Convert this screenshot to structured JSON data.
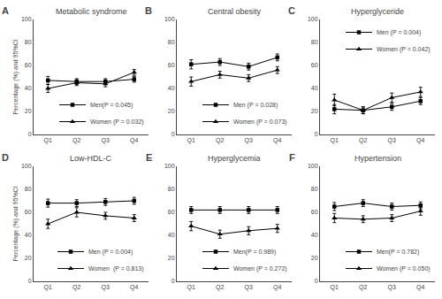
{
  "chart_data": [
    {
      "type": "line",
      "title": "Metabolic syndrome",
      "annotations": [
        "A"
      ],
      "ylabel": "Percentage (%) and 95%CI",
      "categories": [
        "Q1",
        "Q2",
        "Q3",
        "Q4"
      ],
      "series": [
        {
          "name": "Men(P = 0.045)",
          "color": "black",
          "marker": "square",
          "values": [
            47,
            46,
            46,
            48
          ],
          "errors": [
            3.5,
            2.5,
            2.5,
            2.5
          ]
        },
        {
          "name": "Women (P = 0.032)",
          "color": "black",
          "marker": "triangle-up",
          "values": [
            40,
            45,
            44,
            54
          ],
          "errors": [
            3.5,
            2.5,
            2.5,
            2.5
          ]
        }
      ],
      "ylim": [
        0,
        100
      ],
      "yticks": [
        0,
        20,
        40,
        60,
        80,
        100
      ],
      "grid": false,
      "legend": "lower right"
    },
    {
      "type": "line",
      "title": "Central obesity",
      "annotations": [
        "B"
      ],
      "categories": [
        "Q1",
        "Q2",
        "Q3",
        "Q4"
      ],
      "series": [
        {
          "name": "Men (P = 0.028)",
          "color": "black",
          "marker": "square",
          "values": [
            61,
            63,
            59,
            67
          ],
          "errors": [
            4,
            3,
            3,
            3
          ]
        },
        {
          "name": "Women (P = 0.073)",
          "color": "black",
          "marker": "triangle-up",
          "values": [
            46,
            52,
            49,
            56
          ],
          "errors": [
            4,
            3,
            3,
            3
          ]
        }
      ],
      "ylim": [
        0,
        100
      ],
      "yticks": [
        0,
        20,
        40,
        60,
        80,
        100
      ],
      "grid": false,
      "legend": "lower right"
    },
    {
      "type": "line",
      "title": "Hyperglyceride",
      "annotations": [
        "C"
      ],
      "categories": [
        "Q1",
        "Q2",
        "Q3",
        "Q4"
      ],
      "series": [
        {
          "name": "Men (P = 0.004)",
          "color": "black",
          "marker": "square",
          "values": [
            22,
            21,
            24,
            29
          ],
          "errors": [
            4,
            3,
            3,
            3
          ]
        },
        {
          "name": "Women (P = 0.042)",
          "color": "black",
          "marker": "triangle-up",
          "values": [
            30,
            21,
            32,
            37
          ],
          "errors": [
            5,
            3,
            4,
            4
          ]
        }
      ],
      "ylim": [
        0,
        100
      ],
      "yticks": [
        0,
        20,
        40,
        60,
        80,
        100
      ],
      "grid": false,
      "legend": "upper right"
    },
    {
      "type": "line",
      "title": "Low-HDL-C",
      "annotations": [
        "D"
      ],
      "ylabel": "Percentage (%) and 95%CI",
      "categories": [
        "Q1",
        "Q2",
        "Q3",
        "Q4"
      ],
      "series": [
        {
          "name": "Men (P = 0.004)",
          "color": "black",
          "marker": "square",
          "values": [
            68,
            68,
            69,
            70
          ],
          "errors": [
            3.5,
            3,
            3,
            3
          ]
        },
        {
          "name": "Women  (P = 0.813)",
          "color": "black",
          "marker": "triangle-up",
          "values": [
            50,
            60,
            57,
            55
          ],
          "errors": [
            4,
            4,
            3,
            3
          ]
        }
      ],
      "ylim": [
        0,
        100
      ],
      "yticks": [
        0,
        20,
        40,
        60,
        80,
        100
      ],
      "grid": false,
      "legend": "lower right"
    },
    {
      "type": "line",
      "title": "Hyperglycemia",
      "annotations": [
        "E"
      ],
      "categories": [
        "Q1",
        "Q2",
        "Q3",
        "Q4"
      ],
      "series": [
        {
          "name": "Men(P = 0.989)",
          "color": "black",
          "marker": "square",
          "values": [
            62,
            62,
            62,
            62
          ],
          "errors": [
            3,
            3,
            3,
            3
          ]
        },
        {
          "name": "Women (P = 0.272)",
          "color": "black",
          "marker": "triangle-up",
          "values": [
            48,
            41,
            44,
            46
          ],
          "errors": [
            4,
            3.5,
            3.5,
            3.5
          ]
        }
      ],
      "ylim": [
        0,
        100
      ],
      "yticks": [
        0,
        20,
        40,
        60,
        80,
        100
      ],
      "grid": false,
      "legend": "lower right"
    },
    {
      "type": "line",
      "title": "Hypertension",
      "annotations": [
        "F"
      ],
      "categories": [
        "Q1",
        "Q2",
        "Q3",
        "Q4"
      ],
      "series": [
        {
          "name": "Men(P = 0.782)",
          "color": "black",
          "marker": "square",
          "values": [
            65,
            68,
            65,
            66
          ],
          "errors": [
            3.5,
            3,
            3,
            3
          ]
        },
        {
          "name": "Women (P = 0.050)",
          "color": "black",
          "marker": "triangle-up",
          "values": [
            55,
            54,
            55,
            61
          ],
          "errors": [
            4,
            3,
            3,
            3.5
          ]
        }
      ],
      "ylim": [
        0,
        100
      ],
      "yticks": [
        0,
        20,
        40,
        60,
        80,
        100
      ],
      "grid": false,
      "legend": "lower right"
    }
  ]
}
